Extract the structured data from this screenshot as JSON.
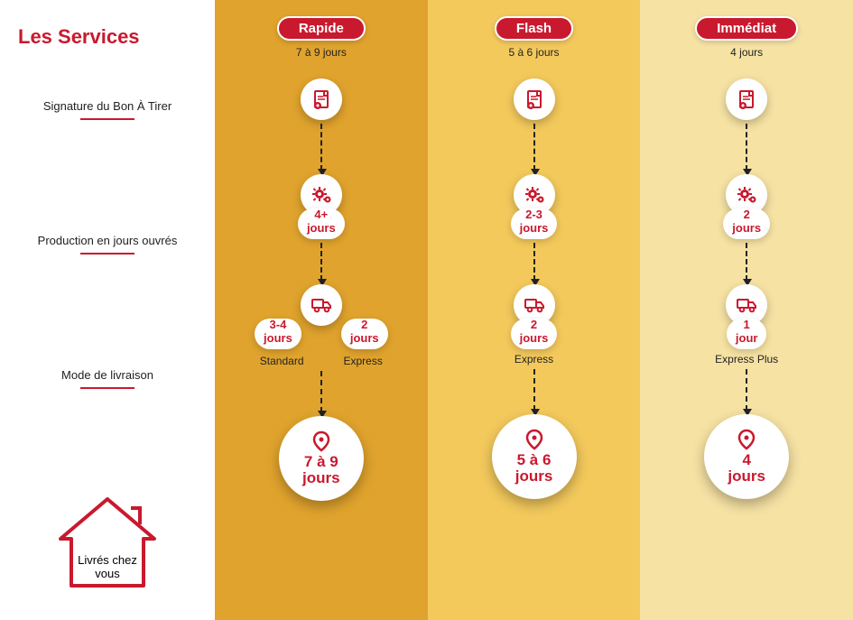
{
  "colors": {
    "accent": "#c9192e",
    "text": "#222222",
    "col_bg": [
      "#e0a32d",
      "#f3c95c",
      "#f6e2a3"
    ],
    "white": "#ffffff"
  },
  "sidebar": {
    "title": "Les Services",
    "row1": "Signature du Bon À Tirer",
    "row2": "Production en jours ouvrés",
    "row3": "Mode de livraison",
    "house": "Livrés chez\nvous"
  },
  "columns": [
    {
      "name": "Rapide",
      "subtitle": "7 à 9 jours",
      "production": "4+\njours",
      "delivery_split": true,
      "delivery_left": "3-4\njours",
      "delivery_right": "2\njours",
      "mode_left": "Standard",
      "mode_right": "Express",
      "final": "7 à 9\njours"
    },
    {
      "name": "Flash",
      "subtitle": "5 à 6 jours",
      "production": "2-3\njours",
      "delivery_split": false,
      "delivery": "2\njours",
      "mode": "Express",
      "final": "5 à 6\njours"
    },
    {
      "name": "Immédiat",
      "subtitle": "4 jours",
      "production": "2\njours",
      "delivery_split": false,
      "delivery": "1\njour",
      "mode": "Express Plus",
      "final": "4\njours"
    }
  ],
  "layout": {
    "row_offsets": {
      "title": 0,
      "row1": 56,
      "row2": 126,
      "row3": 126,
      "house": 110
    }
  }
}
